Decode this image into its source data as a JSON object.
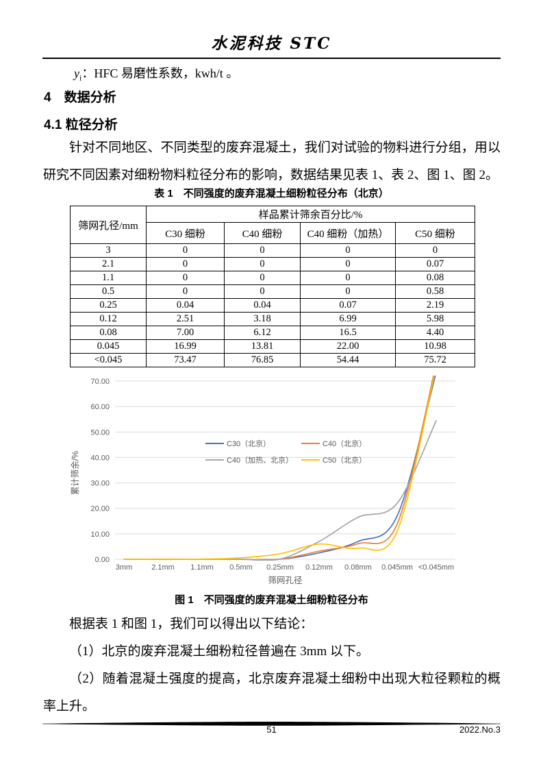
{
  "header": {
    "journal_title": "水泥科技 STC"
  },
  "body": {
    "formula_note": {
      "base": "y",
      "sub": "i",
      "text": "：HFC 易磨性系数，kwh/t 。"
    },
    "section_heading": "4　数据分析",
    "subsection_heading": "4.1 粒径分析",
    "paragraph": "针对不同地区、不同类型的废弃混凝土，我们对试验的物料进行分组，用以研究不同因素对细粉物料粒径分布的影响，数据结果见表 1、表 2、图 1、图 2。",
    "conclusions": {
      "intro": "根据表 1 和图 1，我们可以得出以下结论：",
      "item1": "（1）北京的废弃混凝土细粉粒径普遍在 3mm 以下。",
      "item2": "（2）随着混凝土强度的提高，北京废弃混凝土细粉中出现大粒径颗粒的概率上升。"
    }
  },
  "table1": {
    "caption": "表 1　不同强度的废弃混凝土细粉粒径分布（北京）",
    "row_header": "筛网孔径/mm",
    "group_header": "样品累计筛余百分比/%",
    "columns": [
      "C30 细粉",
      "C40 细粉",
      "C40 细粉（加热）",
      "C50 细粉"
    ],
    "rows": [
      [
        "3",
        "0",
        "0",
        "0",
        "0"
      ],
      [
        "2.1",
        "0",
        "0",
        "0",
        "0.07"
      ],
      [
        "1.1",
        "0",
        "0",
        "0",
        "0.08"
      ],
      [
        "0.5",
        "0",
        "0",
        "0",
        "0.58"
      ],
      [
        "0.25",
        "0.04",
        "0.04",
        "0.07",
        "2.19"
      ],
      [
        "0.12",
        "2.51",
        "3.18",
        "6.99",
        "5.98"
      ],
      [
        "0.08",
        "7.00",
        "6.12",
        "16.5",
        "4.40"
      ],
      [
        "0.045",
        "16.99",
        "13.81",
        "22.00",
        "10.98"
      ],
      [
        "<0.045",
        "73.47",
        "76.85",
        "54.44",
        "75.72"
      ]
    ]
  },
  "figure1": {
    "caption": "图 1　不同强度的废弃混凝土细粉粒径分布"
  },
  "chart_data": {
    "type": "line",
    "smooth": true,
    "categories": [
      "3mm",
      "2.1mm",
      "1.1mm",
      "0.5mm",
      "0.25mm",
      "0.12mm",
      "0.08mm",
      "0.045mm",
      "<0.045mm"
    ],
    "series": [
      {
        "name": "C30（北京）",
        "color": "#4472C4",
        "values": [
          0,
          0,
          0,
          0,
          0.04,
          2.51,
          7.0,
          16.99,
          73.47
        ]
      },
      {
        "name": "C40（北京）",
        "color": "#ED7D31",
        "values": [
          0,
          0,
          0,
          0,
          0.04,
          3.18,
          6.12,
          13.81,
          76.85
        ]
      },
      {
        "name": "C40（加热、北京）",
        "color": "#A5A5A5",
        "values": [
          0,
          0,
          0,
          0,
          0.07,
          6.99,
          16.5,
          22.0,
          54.44
        ]
      },
      {
        "name": "C50（北京）",
        "color": "#FFC000",
        "values": [
          0,
          0.07,
          0.08,
          0.58,
          2.19,
          5.98,
          4.4,
          10.98,
          75.72
        ]
      }
    ],
    "x_axis_title": "筛网孔径",
    "y_axis_title": "累计筛余/%",
    "ylim": [
      0,
      70
    ],
    "ytick_step": 10,
    "yticks": [
      "0.00",
      "10.00",
      "20.00",
      "30.00",
      "40.00",
      "50.00",
      "60.00",
      "70.00"
    ],
    "grid": true,
    "gridline_color": "#D9D9D9",
    "tick_label_color": "#595959",
    "legend_position": "inside-top-center-2x2"
  },
  "footer": {
    "page_number": "51",
    "issue": "2022.No.3"
  }
}
